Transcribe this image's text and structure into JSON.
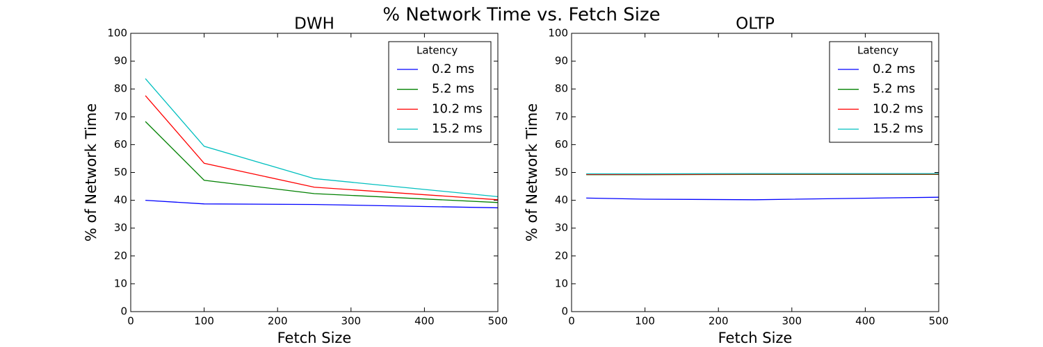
{
  "title": "% Network Time vs. Fetch Size",
  "chart_data": [
    {
      "type": "line",
      "title": "DWH",
      "x_label": "Fetch Size",
      "y_label": "% of Network Time",
      "x": [
        20,
        100,
        250,
        500
      ],
      "series": [
        {
          "name": "0.2 ms",
          "color": "#0000ff",
          "values": [
            40.0,
            38.7,
            38.5,
            37.3
          ]
        },
        {
          "name": "5.2 ms",
          "color": "#008000",
          "values": [
            68.3,
            47.2,
            42.4,
            39.2
          ]
        },
        {
          "name": "10.2 ms",
          "color": "#ff0000",
          "values": [
            77.6,
            53.3,
            44.7,
            40.2
          ]
        },
        {
          "name": "15.2 ms",
          "color": "#00bfbf",
          "values": [
            83.7,
            59.4,
            47.8,
            41.3
          ]
        }
      ],
      "xlim": [
        0,
        500
      ],
      "xticks": [
        0,
        100,
        200,
        300,
        400,
        500
      ],
      "ylim": [
        0,
        100
      ],
      "yticks": [
        0,
        10,
        20,
        30,
        40,
        50,
        60,
        70,
        80,
        90,
        100
      ],
      "legend_title": "Latency",
      "legend": "upper right",
      "grid": false
    },
    {
      "type": "line",
      "title": "OLTP",
      "x_label": "Fetch Size",
      "y_label": "% of Network Time",
      "x": [
        20,
        100,
        250,
        500
      ],
      "series": [
        {
          "name": "0.2 ms",
          "color": "#0000ff",
          "values": [
            40.8,
            40.4,
            40.2,
            41.1
          ]
        },
        {
          "name": "5.2 ms",
          "color": "#008000",
          "values": [
            49.2,
            49.2,
            49.3,
            49.3
          ]
        },
        {
          "name": "10.2 ms",
          "color": "#ff0000",
          "values": [
            49.3,
            49.3,
            49.4,
            49.4
          ]
        },
        {
          "name": "15.2 ms",
          "color": "#00bfbf",
          "values": [
            49.5,
            49.5,
            49.6,
            49.6
          ]
        }
      ],
      "xlim": [
        0,
        500
      ],
      "xticks": [
        0,
        100,
        200,
        300,
        400,
        500
      ],
      "ylim": [
        0,
        100
      ],
      "yticks": [
        0,
        10,
        20,
        30,
        40,
        50,
        60,
        70,
        80,
        90,
        100
      ],
      "legend_title": "Latency",
      "legend": "upper right",
      "grid": false
    }
  ]
}
